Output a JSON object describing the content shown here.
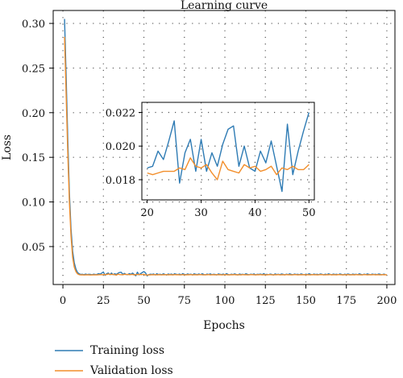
{
  "chart_data": [
    {
      "type": "line",
      "title": "Learning curve",
      "xlabel": "Epochs",
      "ylabel": "Loss",
      "xlim": [
        -6,
        205
      ],
      "ylim": [
        0.0075,
        0.3145
      ],
      "xticks": [
        0,
        25,
        50,
        75,
        100,
        125,
        150,
        175,
        200
      ],
      "yticks": [
        0.05,
        0.1,
        0.15,
        0.2,
        0.25,
        0.3
      ],
      "ytick_labels": [
        "0.05",
        "0.10",
        "0.15",
        "0.20",
        "0.25",
        "0.30"
      ],
      "grid": true,
      "legend_position": "bottom-left, below the plot",
      "series": [
        {
          "name": "Training loss",
          "color": "#2e7bb4",
          "x_start": 1,
          "values": [
            0.305,
            0.24,
            0.17,
            0.11,
            0.07,
            0.045,
            0.032,
            0.025,
            0.021,
            0.0195,
            0.0188,
            0.019,
            0.0185,
            0.0192,
            0.0186,
            0.019,
            0.0188,
            0.0184,
            0.0191,
            0.0187,
            0.0188,
            0.0197,
            0.0192,
            0.0203,
            0.0215,
            0.0178,
            0.0196,
            0.0204,
            0.0185,
            0.0204,
            0.0185,
            0.0196,
            0.0188,
            0.0201,
            0.021,
            0.0212,
            0.0188,
            0.02,
            0.0187,
            0.0185,
            0.0197,
            0.019,
            0.0203,
            0.0188,
            0.0173,
            0.0213,
            0.0183,
            0.0197,
            0.0209,
            0.022,
            0.0205,
            0.0172,
            0.0185,
            0.0191,
            0.0188,
            0.0193,
            0.0182,
            0.0196,
            0.0187,
            0.019,
            0.0185,
            0.0195,
            0.0188,
            0.0181,
            0.0193,
            0.0187,
            0.0192,
            0.0184,
            0.0196,
            0.0189,
            0.0186,
            0.0192,
            0.0183,
            0.0197,
            0.0188,
            0.0185,
            0.0194,
            0.0187,
            0.0191,
            0.0182,
            0.0195,
            0.0189,
            0.0186,
            0.0193,
            0.0184,
            0.0196,
            0.0188,
            0.0183,
            0.0192,
            0.0187,
            0.0195,
            0.0185,
            0.019,
            0.0188,
            0.0182,
            0.0194,
            0.0189,
            0.0186,
            0.0192,
            0.0184,
            0.0197,
            0.0188,
            0.0183,
            0.0191,
            0.0186,
            0.0194,
            0.0188,
            0.0182,
            0.0193,
            0.0187,
            0.019,
            0.0185,
            0.0196,
            0.0189,
            0.0184,
            0.0191,
            0.0187,
            0.0194,
            0.0183,
            0.019,
            0.0188,
            0.0192,
            0.0185,
            0.0197,
            0.0186,
            0.0189,
            0.0184,
            0.0192,
            0.0188,
            0.0182,
            0.0194,
            0.0187,
            0.019,
            0.0185,
            0.0193,
            0.0189,
            0.0183,
            0.0191,
            0.0186,
            0.0195,
            0.0188,
            0.0184,
            0.0192,
            0.0187,
            0.019,
            0.0185,
            0.0194,
            0.0189,
            0.0183,
            0.0191,
            0.0186,
            0.0196,
            0.0188,
            0.0184,
            0.0192,
            0.0187,
            0.019,
            0.0185,
            0.0193,
            0.0189,
            0.0183,
            0.0191,
            0.0186,
            0.0195,
            0.0188,
            0.0184,
            0.0192,
            0.0187,
            0.019,
            0.0185,
            0.0194,
            0.0189,
            0.0183,
            0.0191,
            0.0186,
            0.0193,
            0.0188,
            0.0184,
            0.0192,
            0.0187,
            0.019,
            0.0185,
            0.0195,
            0.0189,
            0.0183,
            0.0191,
            0.0186,
            0.0194,
            0.0188,
            0.0184,
            0.0192,
            0.0187,
            0.019,
            0.0185,
            0.0193,
            0.0189,
            0.0183,
            0.0191,
            0.0188
          ]
        },
        {
          "name": "Validation loss",
          "color": "#f28e2b",
          "x_start": 1,
          "values": [
            0.285,
            0.22,
            0.155,
            0.1,
            0.062,
            0.038,
            0.027,
            0.022,
            0.0195,
            0.0185,
            0.0183,
            0.0184,
            0.0182,
            0.0183,
            0.0184,
            0.0183,
            0.0182,
            0.0183,
            0.0183,
            0.0184,
            0.0183,
            0.0184,
            0.0185,
            0.0185,
            0.0185,
            0.0187,
            0.0186,
            0.0193,
            0.0188,
            0.0187,
            0.0189,
            0.0184,
            0.018,
            0.0191,
            0.0186,
            0.0185,
            0.0184,
            0.0189,
            0.0187,
            0.0188,
            0.0185,
            0.0186,
            0.0188,
            0.0183,
            0.0187,
            0.0186,
            0.0188,
            0.0186,
            0.0186,
            0.0189,
            0.0182,
            0.018,
            0.0184,
            0.0183,
            0.0185,
            0.0184,
            0.0186,
            0.0183,
            0.0185,
            0.0184,
            0.0183,
            0.0185,
            0.0184,
            0.0186,
            0.0183,
            0.0185,
            0.0184,
            0.0183,
            0.0186,
            0.0184,
            0.0185,
            0.0183,
            0.0184,
            0.0186,
            0.0184,
            0.0183,
            0.0185,
            0.0184,
            0.0186,
            0.0183,
            0.0185,
            0.0184,
            0.0183,
            0.0185,
            0.0186,
            0.0184,
            0.0183,
            0.0185,
            0.0184,
            0.0186,
            0.0183,
            0.0184,
            0.0185,
            0.0183,
            0.0186,
            0.0184,
            0.0185,
            0.0183,
            0.0184,
            0.0186,
            0.0185,
            0.0183,
            0.0184,
            0.0185,
            0.0184,
            0.0186,
            0.0183,
            0.0185,
            0.0184,
            0.0183,
            0.0186,
            0.0184,
            0.0185,
            0.0183,
            0.0184,
            0.0186,
            0.0185,
            0.0184,
            0.0183,
            0.0185,
            0.0184,
            0.0186,
            0.0183,
            0.0185,
            0.0184,
            0.0183,
            0.0186,
            0.0185,
            0.0184,
            0.0183,
            0.0185,
            0.0184,
            0.0186,
            0.0183,
            0.0184,
            0.0185,
            0.0183,
            0.0186,
            0.0184,
            0.0185,
            0.0183,
            0.0184,
            0.0186,
            0.0185,
            0.0183,
            0.0184,
            0.0185,
            0.0184,
            0.0186,
            0.0183,
            0.0185,
            0.0184,
            0.0183,
            0.0186,
            0.0184,
            0.0185,
            0.0183,
            0.0184,
            0.0186,
            0.0185,
            0.0184,
            0.0183,
            0.0185,
            0.0184,
            0.0186,
            0.0183,
            0.0185,
            0.0184,
            0.0183,
            0.0186,
            0.0185,
            0.0184,
            0.0183,
            0.0185,
            0.0184,
            0.0186,
            0.0183,
            0.0184,
            0.0185,
            0.0183,
            0.0186,
            0.0184,
            0.0185,
            0.0183,
            0.0184,
            0.0186,
            0.0185,
            0.0183,
            0.0184,
            0.0185,
            0.0184,
            0.0186,
            0.0183,
            0.0185,
            0.0184,
            0.0183,
            0.0186,
            0.0184,
            0.0185,
            0.0184
          ]
        }
      ]
    },
    {
      "type": "line",
      "role": "inset",
      "xlim": [
        19,
        51
      ],
      "ylim": [
        0.0168,
        0.0226
      ],
      "xticks": [
        20,
        30,
        40,
        50
      ],
      "yticks": [
        0.018,
        0.02,
        0.022
      ],
      "ytick_labels": [
        "0.018",
        "0.020",
        "0.022"
      ],
      "x_start": 20,
      "x_end": 50,
      "grid": true
    }
  ]
}
